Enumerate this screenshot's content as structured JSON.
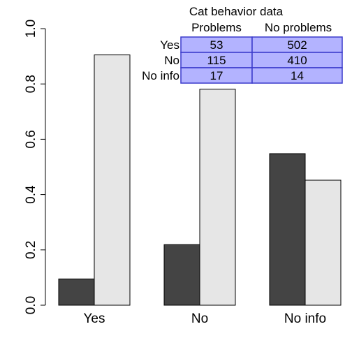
{
  "chart_data": {
    "type": "bar",
    "categories": [
      "Yes",
      "No",
      "No info"
    ],
    "series": [
      {
        "values": [
          0.095,
          0.219,
          0.548
        ]
      },
      {
        "values": [
          0.905,
          0.781,
          0.452
        ]
      }
    ],
    "ylim": [
      0,
      1
    ],
    "yticks": [
      "0.0",
      "0.2",
      "0.4",
      "0.6",
      "0.8",
      "1.0"
    ],
    "grid": false,
    "colors": {
      "series": [
        "#444444",
        "#e6e6e6"
      ],
      "bar_border": "#000000"
    },
    "inset_table": {
      "title": "Cat behavior data",
      "columns": [
        "Problems",
        "No problems"
      ],
      "rows": [
        {
          "label": "Yes",
          "cells": [
            "53",
            "502"
          ]
        },
        {
          "label": "No",
          "cells": [
            "115",
            "410"
          ]
        },
        {
          "label": "No info",
          "cells": [
            "17",
            "14"
          ]
        }
      ],
      "fill": "#b3b3ff",
      "border": "#3a3acc",
      "placement": "top-right"
    }
  }
}
